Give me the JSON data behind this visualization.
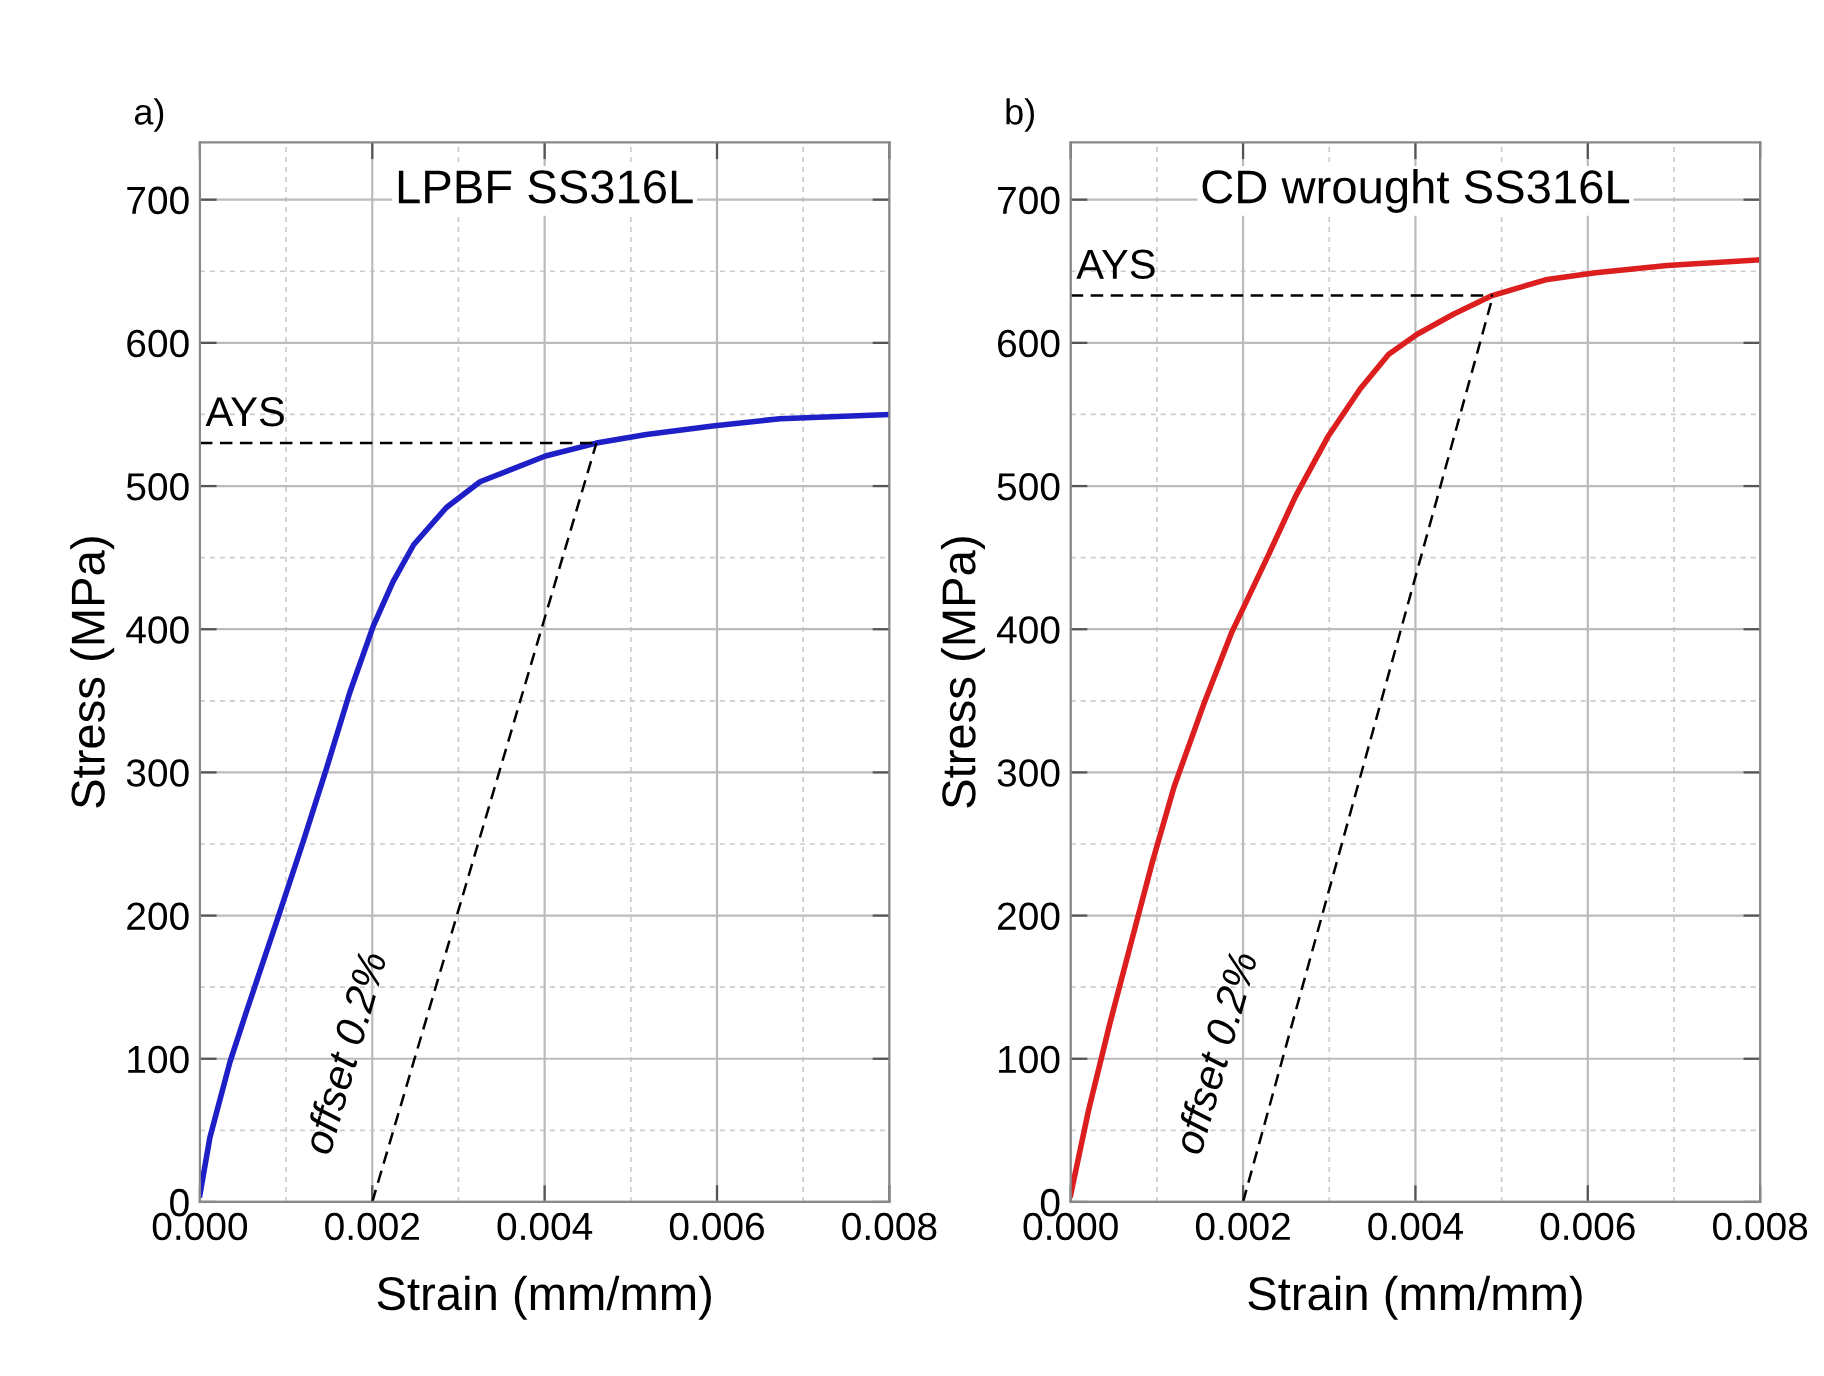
{
  "chart_data": [
    {
      "type": "line",
      "title": "LPBF SS316L",
      "xlabel": "Strain (mm/mm)",
      "ylabel": "Stress (MPa)",
      "xlim": [
        0,
        0.008
      ],
      "xticks": [
        {
          "value": 0,
          "label": "0.000"
        },
        {
          "value": 0.002,
          "label": "0.002"
        },
        {
          "value": 0.004,
          "label": "0.004"
        },
        {
          "value": 0.006,
          "label": "0.006"
        },
        {
          "value": 0.008,
          "label": "0.008"
        }
      ],
      "ylim": [
        0,
        740
      ],
      "yticks": [
        0,
        100,
        200,
        300,
        400,
        500,
        600,
        700
      ],
      "grid": true,
      "legend": false,
      "series": [
        {
          "color": "#1f1fc8",
          "x": [
            0,
            0.000116,
            0.00035,
            0.00054,
            0.00093,
            0.0012,
            0.00147,
            0.00174,
            0.00201,
            0.00224,
            0.00248,
            0.00286,
            0.00325,
            0.00401,
            0.0046,
            0.00518,
            0.00595,
            0.00673,
            0.008
          ],
          "values": [
            5,
            45,
            98,
            133,
            203,
            252,
            303,
            356,
            402,
            433,
            459,
            485,
            503,
            521,
            530,
            536,
            542,
            547,
            550
          ]
        },
        {
          "color": "#000000",
          "line_style": "dashed",
          "x": [
            0,
            0.0046
          ],
          "values": [
            530,
            530
          ]
        },
        {
          "color": "#000000",
          "line_style": "dashed",
          "x": [
            0.002,
            0.0046
          ],
          "values": [
            0,
            530
          ]
        }
      ],
      "annotations": [
        "a)",
        {
          "text": "AYS",
          "x": 0,
          "y": 530
        },
        "offset 0.2%"
      ]
    },
    {
      "type": "line",
      "title": "CD wrought SS316L",
      "xlabel": "Strain (mm/mm)",
      "ylabel": "Stress (MPa)",
      "xlim": [
        0,
        0.008
      ],
      "xticks": [
        {
          "value": 0,
          "label": "0.000"
        },
        {
          "value": 0.002,
          "label": "0.002"
        },
        {
          "value": 0.004,
          "label": "0.004"
        },
        {
          "value": 0.006,
          "label": "0.006"
        },
        {
          "value": 0.008,
          "label": "0.008"
        }
      ],
      "ylim": [
        0,
        740
      ],
      "yticks": [
        0,
        100,
        200,
        300,
        400,
        500,
        600,
        700
      ],
      "grid": true,
      "legend": false,
      "series": [
        {
          "color": "#dc1e1e",
          "x": [
            0,
            0.000207,
            0.000456,
            0.000705,
            0.00095,
            0.0012,
            0.00154,
            0.00187,
            0.00228,
            0.00261,
            0.00299,
            0.00336,
            0.00369,
            0.00402,
            0.00444,
            0.00489,
            0.00551,
            0.00609,
            0.00692,
            0.008
          ],
          "values": [
            5,
            64,
            125,
            182,
            238,
            290,
            347,
            398,
            450,
            493,
            535,
            568,
            592,
            606,
            620,
            633,
            644,
            649,
            654,
            658
          ]
        },
        {
          "color": "#000000",
          "line_style": "dashed",
          "x": [
            0,
            0.0049
          ],
          "values": [
            633,
            633
          ]
        },
        {
          "color": "#000000",
          "line_style": "dashed",
          "x": [
            0.002,
            0.0049
          ],
          "values": [
            0,
            633
          ]
        }
      ],
      "annotations": [
        "b)",
        {
          "text": "AYS",
          "x": 0,
          "y": 633
        },
        "offset 0.2%"
      ]
    }
  ]
}
